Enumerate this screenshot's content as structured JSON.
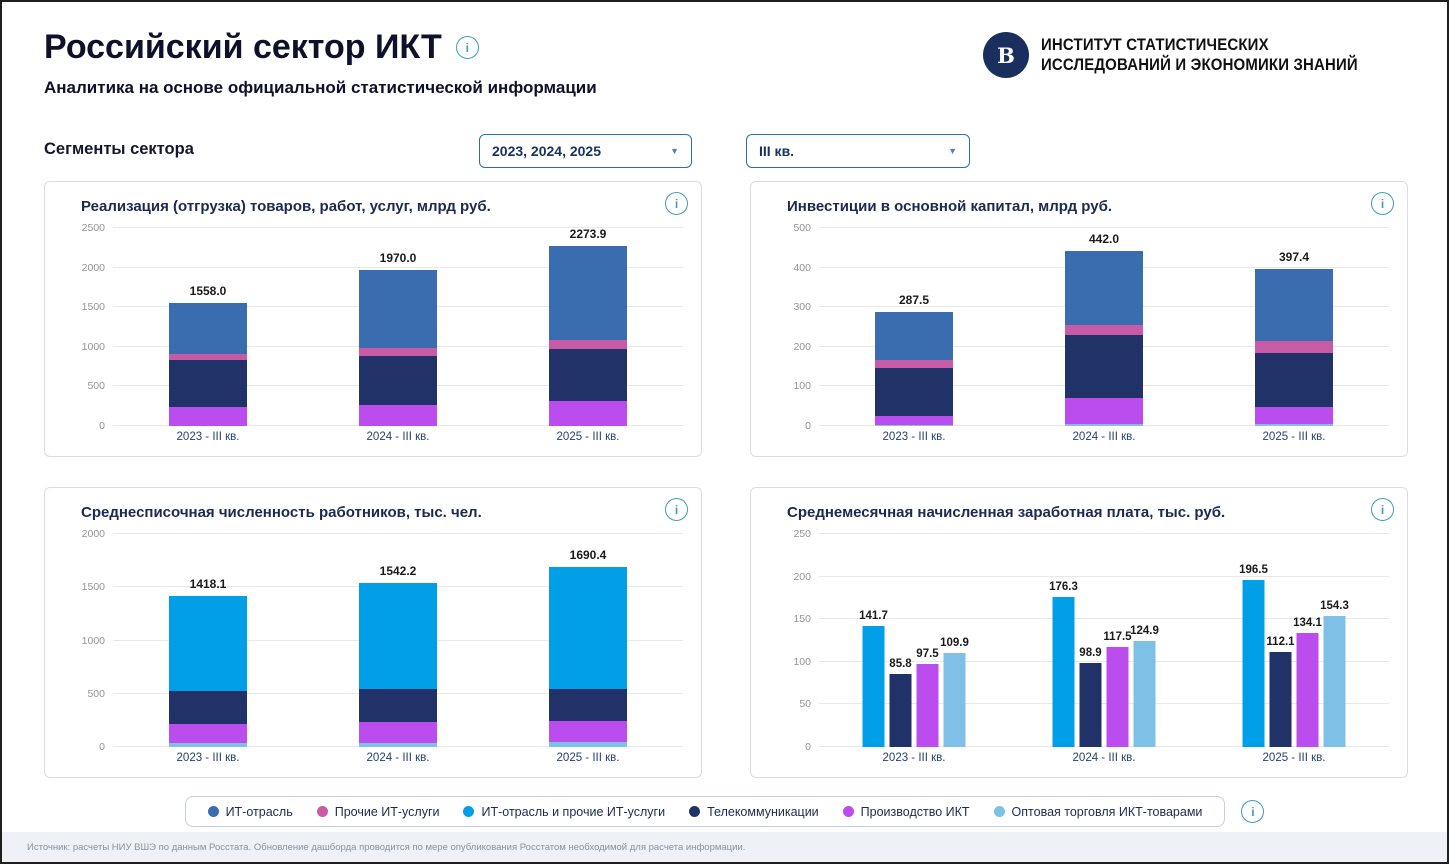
{
  "header": {
    "title": "Российский сектор ИКТ",
    "subtitle": "Аналитика на основе официальной статистической информации",
    "org": {
      "line1": "ИНСТИТУТ СТАТИСТИЧЕСКИХ",
      "line2": "ИССЛЕДОВАНИЙ И ЭКОНОМИКИ ЗНАНИЙ",
      "logo_letter": "В"
    }
  },
  "filters": {
    "section_label": "Сегменты сектора",
    "years": {
      "value": "2023, 2024, 2025"
    },
    "quarter": {
      "value": "III кв."
    }
  },
  "icons": {
    "info": "i",
    "caret": "▼"
  },
  "colors": {
    "it_industry": "#3a6cb0",
    "other_it": "#c75ba6",
    "it_and_other": "#009fe8",
    "telecom": "#203268",
    "ict_manufacturing": "#bb4ced",
    "ict_wholesale": "#7fc0e6"
  },
  "legend": {
    "items": [
      {
        "label": "ИТ-отрасль",
        "color_key": "it_industry"
      },
      {
        "label": "Прочие ИТ-услуги",
        "color_key": "other_it"
      },
      {
        "label": "ИТ-отрасль и прочие ИТ-услуги",
        "color_key": "it_and_other"
      },
      {
        "label": "Телекоммуникации",
        "color_key": "telecom"
      },
      {
        "label": "Производство ИКТ",
        "color_key": "ict_manufacturing"
      },
      {
        "label": "Оптовая торговля ИКТ-товарами",
        "color_key": "ict_wholesale"
      }
    ]
  },
  "chart_data": [
    {
      "type": "bar",
      "stacked": true,
      "title": "Реализация (отгрузка) товаров, работ, услуг, млрд руб.",
      "categories": [
        "2023 - III кв.",
        "2024 - III кв.",
        "2025 - III кв."
      ],
      "ylim": [
        0,
        2500
      ],
      "yticks": [
        0,
        500,
        1000,
        1500,
        2000,
        2500
      ],
      "totals": [
        1558.0,
        1970.0,
        2273.9
      ],
      "series": [
        {
          "name": "Производство ИКТ",
          "color_key": "ict_manufacturing",
          "values": [
            240,
            260,
            320
          ]
        },
        {
          "name": "Телекоммуникации",
          "color_key": "telecom",
          "values": [
            590,
            620,
            650
          ]
        },
        {
          "name": "Прочие ИТ-услуги",
          "color_key": "other_it",
          "values": [
            75,
            100,
            110
          ]
        },
        {
          "name": "ИТ-отрасль",
          "color_key": "it_industry",
          "values": [
            653,
            990,
            1193.9
          ]
        }
      ]
    },
    {
      "type": "bar",
      "stacked": true,
      "title": "Инвестиции в основной капитал, млрд руб.",
      "categories": [
        "2023 - III кв.",
        "2024 - III кв.",
        "2025 - III кв."
      ],
      "ylim": [
        0,
        500
      ],
      "yticks": [
        0,
        100,
        200,
        300,
        400,
        500
      ],
      "totals": [
        287.5,
        442.0,
        397.4
      ],
      "series": [
        {
          "name": "Оптовая торговля ИКТ-товарами",
          "color_key": "ict_wholesale",
          "values": [
            3,
            4,
            4
          ]
        },
        {
          "name": "Производство ИКТ",
          "color_key": "ict_manufacturing",
          "values": [
            23,
            68,
            43
          ]
        },
        {
          "name": "Телекоммуникации",
          "color_key": "telecom",
          "values": [
            120,
            159,
            137
          ]
        },
        {
          "name": "Прочие ИТ-услуги",
          "color_key": "other_it",
          "values": [
            20,
            25,
            30
          ]
        },
        {
          "name": "ИТ-отрасль",
          "color_key": "it_industry",
          "values": [
            121.5,
            186,
            183.4
          ]
        }
      ]
    },
    {
      "type": "bar",
      "stacked": true,
      "title": "Среднесписочная численность работников, тыс. чел.",
      "categories": [
        "2023 - III кв.",
        "2024 - III кв.",
        "2025 - III кв."
      ],
      "ylim": [
        0,
        2000
      ],
      "yticks": [
        0,
        500,
        1000,
        1500,
        2000
      ],
      "totals": [
        1418.1,
        1542.2,
        1690.4
      ],
      "series": [
        {
          "name": "Оптовая торговля ИКТ-товарами",
          "color_key": "ict_wholesale",
          "values": [
            40,
            42,
            45
          ]
        },
        {
          "name": "Производство ИКТ",
          "color_key": "ict_manufacturing",
          "values": [
            180,
            190,
            200
          ]
        },
        {
          "name": "Телекоммуникации",
          "color_key": "telecom",
          "values": [
            310,
            310,
            300
          ]
        },
        {
          "name": "ИТ-отрасль и прочие ИТ-услуги",
          "color_key": "it_and_other",
          "values": [
            888.1,
            1000.2,
            1145.4
          ]
        }
      ]
    },
    {
      "type": "bar",
      "stacked": false,
      "title": "Среднемесячная начисленная заработная плата, тыс. руб.",
      "categories": [
        "2023 - III кв.",
        "2024 - III кв.",
        "2025 - III кв."
      ],
      "ylim": [
        0,
        250
      ],
      "yticks": [
        0,
        50,
        100,
        150,
        200,
        250
      ],
      "series": [
        {
          "name": "ИТ-отрасль и прочие ИТ-услуги",
          "color_key": "it_and_other",
          "values": [
            141.7,
            176.3,
            196.5
          ]
        },
        {
          "name": "Телекоммуникации",
          "color_key": "telecom",
          "values": [
            85.8,
            98.9,
            112.1
          ]
        },
        {
          "name": "Производство ИКТ",
          "color_key": "ict_manufacturing",
          "values": [
            97.5,
            117.5,
            134.1
          ]
        },
        {
          "name": "Оптовая торговля ИКТ-товарами",
          "color_key": "ict_wholesale",
          "values": [
            109.9,
            124.9,
            154.3
          ]
        }
      ]
    }
  ],
  "footer": {
    "source": "Источник: расчеты НИУ ВШЭ по данным Росстата. Обновление дашборда проводится по мере опубликования Росстатом необходимой для расчета информации."
  }
}
